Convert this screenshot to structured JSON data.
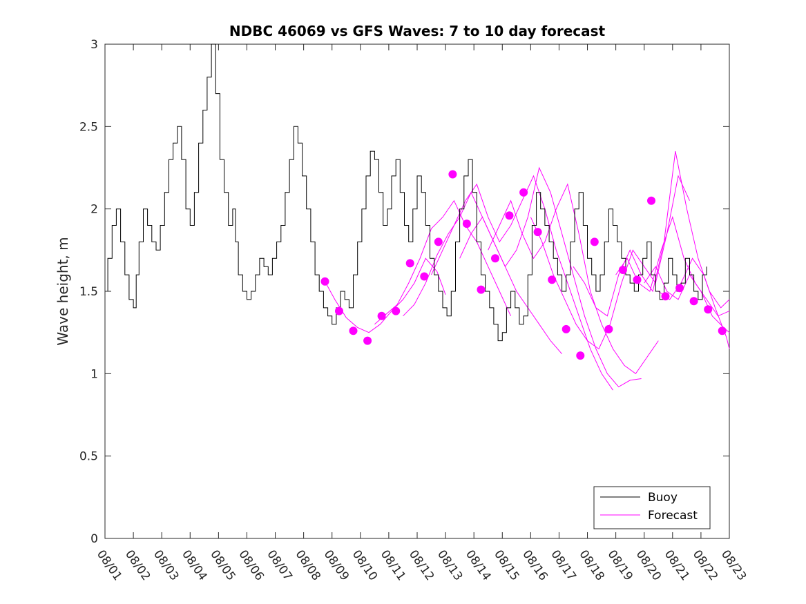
{
  "chart_data": {
    "type": "line",
    "title": "NDBC 46069 vs GFS Waves: 7 to 10 day forecast",
    "xlabel": "",
    "ylabel": "Wave height, m",
    "xlim": [
      0,
      22
    ],
    "ylim": [
      0,
      3
    ],
    "x_unit": "days since 08/01",
    "x_tick_values": [
      0,
      1,
      2,
      3,
      4,
      5,
      6,
      7,
      8,
      9,
      10,
      11,
      12,
      13,
      14,
      15,
      16,
      17,
      18,
      19,
      20,
      21,
      22
    ],
    "x_tick_labels": [
      "08/01",
      "08/02",
      "08/03",
      "08/04",
      "08/05",
      "08/06",
      "08/07",
      "08/08",
      "08/09",
      "08/10",
      "08/11",
      "08/12",
      "08/13",
      "08/14",
      "08/15",
      "08/16",
      "08/17",
      "08/18",
      "08/19",
      "08/20",
      "08/21",
      "08/22",
      "08/23"
    ],
    "y_tick_values": [
      0,
      0.5,
      1,
      1.5,
      2,
      2.5,
      3
    ],
    "y_tick_labels": [
      "0",
      "0.5",
      "1",
      "1.5",
      "2",
      "2.5",
      "3"
    ],
    "grid": false,
    "legend_position": "bottom-right",
    "legend": [
      "Buoy",
      "Forecast"
    ],
    "colors": {
      "buoy": "#000000",
      "forecast": "#ff00ff",
      "axis": "#262626"
    },
    "series": [
      {
        "name": "Buoy",
        "style": "line",
        "x": [
          0,
          0.1,
          0.25,
          0.4,
          0.55,
          0.7,
          0.85,
          1.0,
          1.1,
          1.2,
          1.35,
          1.5,
          1.65,
          1.8,
          1.95,
          2.1,
          2.25,
          2.4,
          2.55,
          2.7,
          2.85,
          3.0,
          3.15,
          3.3,
          3.45,
          3.6,
          3.75,
          3.9,
          4.05,
          4.2,
          4.35,
          4.5,
          4.6,
          4.7,
          4.85,
          5.0,
          5.15,
          5.3,
          5.45,
          5.6,
          5.75,
          5.9,
          6.05,
          6.2,
          6.35,
          6.5,
          6.65,
          6.8,
          6.95,
          7.1,
          7.25,
          7.4,
          7.55,
          7.7,
          7.85,
          8.0,
          8.15,
          8.3,
          8.45,
          8.6,
          8.75,
          8.9,
          9.05,
          9.2,
          9.35,
          9.5,
          9.65,
          9.8,
          9.95,
          10.1,
          10.25,
          10.4,
          10.55,
          10.7,
          10.85,
          11.0,
          11.15,
          11.3,
          11.45,
          11.6,
          11.75,
          11.9,
          12.05,
          12.2,
          12.35,
          12.5,
          12.65,
          12.8,
          12.95,
          13.1,
          13.25,
          13.4,
          13.55,
          13.7,
          13.85,
          14.0,
          14.15,
          14.3,
          14.45,
          14.6,
          14.75,
          14.9,
          15.05,
          15.2,
          15.35,
          15.5,
          15.65,
          15.8,
          15.95,
          16.1,
          16.25,
          16.4,
          16.55,
          16.7,
          16.85,
          17.0,
          17.15,
          17.3,
          17.45,
          17.6,
          17.75,
          17.9,
          18.05,
          18.2,
          18.35,
          18.5,
          18.65,
          18.8,
          18.95,
          19.1,
          19.25,
          19.4,
          19.55,
          19.7,
          19.85,
          20.0,
          20.15,
          20.3,
          20.45,
          20.6,
          20.75,
          20.9,
          21.05,
          21.2
        ],
        "y": [
          1.5,
          1.7,
          1.9,
          2.0,
          1.8,
          1.6,
          1.45,
          1.4,
          1.6,
          1.8,
          2.0,
          1.9,
          1.8,
          1.75,
          1.9,
          2.1,
          2.3,
          2.4,
          2.5,
          2.3,
          2.0,
          1.9,
          2.1,
          2.4,
          2.6,
          2.8,
          3.0,
          2.7,
          2.3,
          2.1,
          1.9,
          2.0,
          1.8,
          1.6,
          1.5,
          1.45,
          1.5,
          1.6,
          1.7,
          1.65,
          1.6,
          1.7,
          1.8,
          1.9,
          2.1,
          2.3,
          2.5,
          2.4,
          2.2,
          2.0,
          1.8,
          1.6,
          1.5,
          1.4,
          1.35,
          1.3,
          1.4,
          1.5,
          1.45,
          1.4,
          1.6,
          1.8,
          2.0,
          2.2,
          2.35,
          2.3,
          2.1,
          1.9,
          2.0,
          2.2,
          2.3,
          2.1,
          1.9,
          1.8,
          2.0,
          2.2,
          2.1,
          1.9,
          1.7,
          1.6,
          1.5,
          1.4,
          1.35,
          1.5,
          1.8,
          2.0,
          2.2,
          2.3,
          2.1,
          1.8,
          1.6,
          1.5,
          1.4,
          1.3,
          1.2,
          1.25,
          1.4,
          1.5,
          1.4,
          1.3,
          1.35,
          1.6,
          1.9,
          2.1,
          2.0,
          1.9,
          1.8,
          1.7,
          1.6,
          1.5,
          1.6,
          1.8,
          2.0,
          2.1,
          1.9,
          1.7,
          1.6,
          1.5,
          1.6,
          1.8,
          2.0,
          1.9,
          1.8,
          1.7,
          1.6,
          1.55,
          1.5,
          1.6,
          1.7,
          1.8,
          1.6,
          1.5,
          1.45,
          1.55,
          1.7,
          1.6,
          1.5,
          1.55,
          1.7,
          1.6,
          1.5,
          1.45,
          1.6,
          1.65
        ]
      },
      {
        "name": "Forecast",
        "style": "line",
        "lines": [
          {
            "x": [
              7.75,
              8.1,
              8.5,
              8.9,
              9.3,
              9.7,
              10.1,
              10.5,
              10.9,
              11.3,
              11.7,
              12.0
            ],
            "y": [
              1.56,
              1.45,
              1.34,
              1.28,
              1.25,
              1.3,
              1.38,
              1.45,
              1.55,
              1.7,
              1.62,
              1.48
            ]
          },
          {
            "x": [
              9.5,
              9.9,
              10.3,
              10.7,
              11.1,
              11.5,
              11.9,
              12.3,
              12.7,
              13.1,
              13.5,
              13.9,
              14.3
            ],
            "y": [
              1.3,
              1.36,
              1.42,
              1.55,
              1.7,
              1.88,
              1.95,
              2.05,
              1.9,
              1.8,
              1.65,
              1.5,
              1.35
            ]
          },
          {
            "x": [
              10.5,
              10.9,
              11.3,
              11.7,
              12.1,
              12.5,
              12.9,
              13.3,
              13.7,
              14.1,
              14.5,
              14.9,
              15.3,
              15.7,
              16.1
            ],
            "y": [
              1.35,
              1.42,
              1.55,
              1.72,
              1.85,
              1.95,
              2.1,
              1.95,
              1.8,
              1.65,
              1.5,
              1.4,
              1.3,
              1.2,
              1.12
            ]
          },
          {
            "x": [
              11.5,
              11.9,
              12.3,
              12.7,
              13.1,
              13.5,
              13.9,
              14.3,
              14.7,
              15.1,
              15.5,
              15.9,
              16.3,
              16.7,
              17.1,
              17.5,
              17.9
            ],
            "y": [
              1.6,
              1.75,
              1.9,
              2.05,
              2.15,
              1.95,
              1.8,
              1.9,
              2.05,
              2.2,
              2.0,
              1.75,
              1.55,
              1.35,
              1.15,
              1.0,
              0.9
            ]
          },
          {
            "x": [
              12.5,
              12.9,
              13.3,
              13.7,
              14.1,
              14.5,
              14.9,
              15.3,
              15.7,
              16.1,
              16.5,
              16.9,
              17.3,
              17.7,
              18.1,
              18.5,
              18.9
            ],
            "y": [
              1.7,
              1.85,
              1.95,
              1.8,
              1.65,
              1.75,
              1.95,
              2.25,
              2.1,
              1.85,
              1.6,
              1.35,
              1.15,
              1.0,
              0.92,
              0.96,
              0.97
            ]
          },
          {
            "x": [
              13.5,
              13.9,
              14.3,
              14.7,
              15.1,
              15.5,
              15.9,
              16.3,
              16.7,
              17.1,
              17.5,
              17.9,
              18.3,
              18.7,
              19.1,
              19.5
            ],
            "y": [
              1.75,
              1.9,
              2.05,
              1.85,
              1.7,
              1.8,
              2.0,
              2.15,
              1.85,
              1.5,
              1.3,
              1.15,
              1.05,
              1.0,
              1.1,
              1.2
            ]
          },
          {
            "x": [
              15.0,
              15.4,
              15.8,
              16.2,
              16.6,
              17.0,
              17.4,
              17.8,
              18.2,
              18.6,
              19.0,
              19.4,
              19.8,
              20.2,
              20.6
            ],
            "y": [
              1.95,
              1.8,
              1.6,
              1.45,
              1.3,
              1.2,
              1.15,
              1.3,
              1.55,
              1.75,
              1.65,
              1.55,
              1.85,
              2.2,
              2.05
            ]
          },
          {
            "x": [
              16.5,
              16.9,
              17.3,
              17.7,
              18.1,
              18.5,
              18.9,
              19.3,
              19.7,
              20.1,
              20.5,
              20.9,
              21.3,
              21.7,
              22.0
            ],
            "y": [
              1.65,
              1.55,
              1.4,
              1.35,
              1.6,
              1.75,
              1.6,
              1.5,
              1.8,
              2.35,
              2.0,
              1.7,
              1.5,
              1.4,
              1.45
            ]
          },
          {
            "x": [
              18.0,
              18.4,
              18.8,
              19.2,
              19.6,
              20.0,
              20.4,
              20.8,
              21.2,
              21.6,
              22.0
            ],
            "y": [
              1.6,
              1.7,
              1.55,
              1.5,
              1.75,
              1.95,
              1.7,
              1.55,
              1.45,
              1.35,
              1.38
            ]
          },
          {
            "x": [
              19.0,
              19.4,
              19.8,
              20.2,
              20.6,
              21.0,
              21.4,
              21.8,
              22.0
            ],
            "y": [
              1.55,
              1.65,
              1.5,
              1.45,
              1.6,
              1.5,
              1.35,
              1.28,
              1.25
            ]
          },
          {
            "x": [
              19.5,
              19.9,
              20.3,
              20.7,
              21.1,
              21.5,
              21.9,
              22.0
            ],
            "y": [
              1.5,
              1.45,
              1.55,
              1.7,
              1.6,
              1.4,
              1.22,
              1.15
            ]
          }
        ],
        "markers": {
          "x": [
            7.75,
            8.25,
            8.75,
            9.25,
            9.75,
            10.25,
            10.75,
            11.25,
            11.75,
            12.25,
            12.75,
            13.25,
            13.75,
            14.25,
            14.75,
            15.25,
            15.75,
            16.25,
            16.75,
            17.25,
            17.75,
            18.25,
            18.75,
            19.25,
            19.75,
            20.25,
            20.75,
            21.25,
            21.75
          ],
          "y": [
            1.56,
            1.38,
            1.26,
            1.2,
            1.35,
            1.38,
            1.67,
            1.59,
            1.8,
            2.21,
            1.91,
            1.51,
            1.7,
            1.96,
            2.1,
            1.86,
            1.57,
            1.27,
            1.11,
            1.8,
            1.27,
            1.63,
            1.57,
            2.05,
            1.47,
            1.52,
            1.44,
            1.39,
            1.26
          ]
        }
      }
    ]
  }
}
